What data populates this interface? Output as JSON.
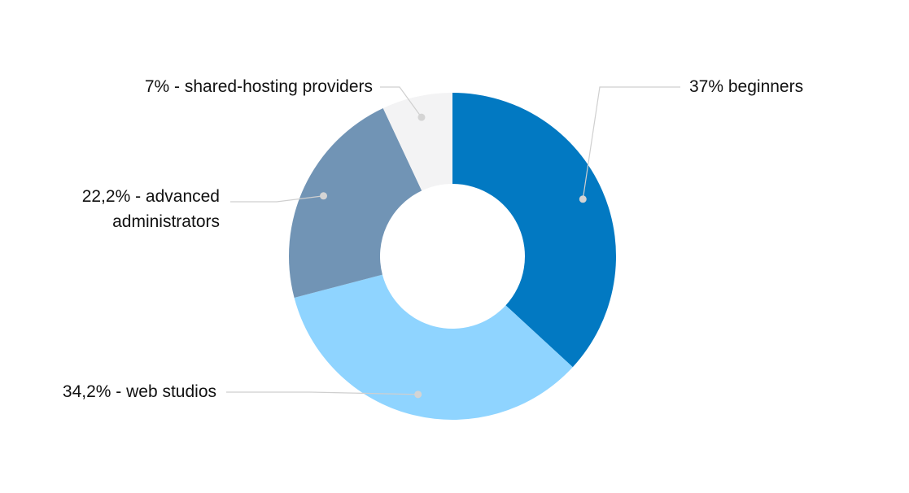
{
  "chart_data": {
    "type": "pie",
    "donut": true,
    "slices": [
      {
        "key": "beginners",
        "value": 37,
        "label": "37% beginners",
        "color": "#0279c2"
      },
      {
        "key": "web_studios",
        "value": 34.2,
        "label": "34,2% - web studios",
        "color": "#8fd4ff"
      },
      {
        "key": "advanced_administrators",
        "value": 22.2,
        "label_lines": [
          "22,2% - advanced",
          "administrators"
        ],
        "color": "#7194b5"
      },
      {
        "key": "shared_hosting_providers",
        "value": 7,
        "label": "7% - shared-hosting providers",
        "color": "#f3f3f4"
      }
    ],
    "legend": "none",
    "leader_color": "#cfcfcf"
  }
}
